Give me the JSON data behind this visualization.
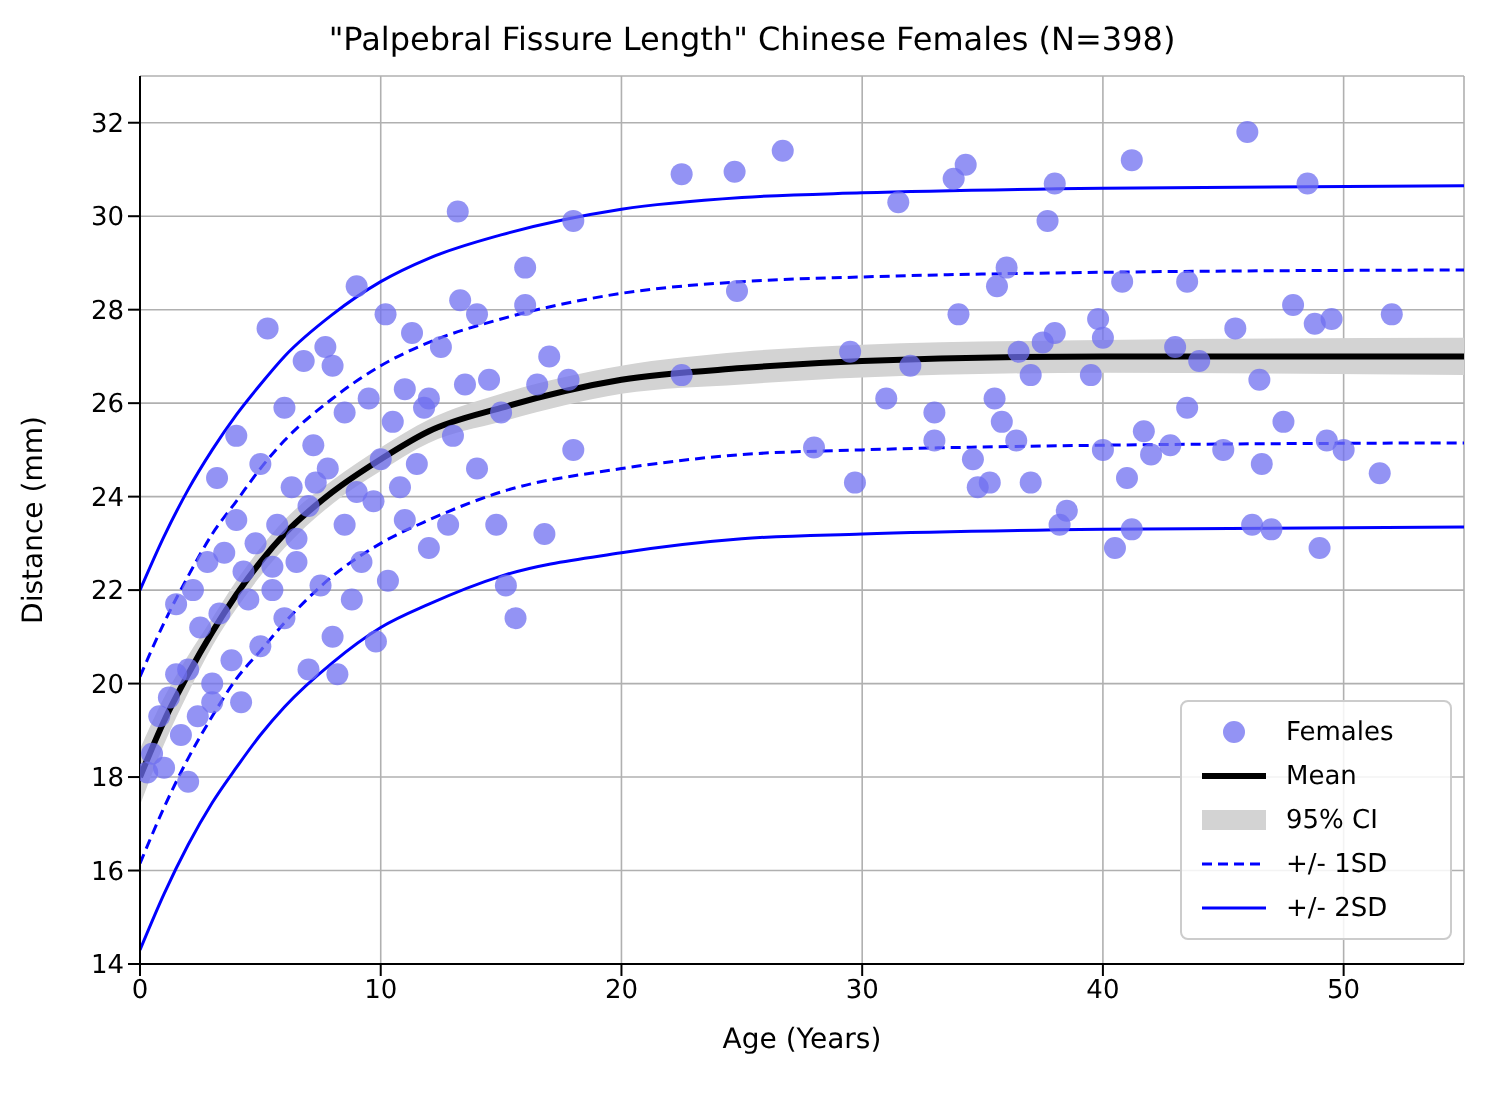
{
  "chart_data": {
    "type": "scatter",
    "title": "\"Palpebral Fissure Length\" Chinese Females (N=398)",
    "xlabel": "Age (Years)",
    "ylabel": "Distance (mm)",
    "xlim": [
      0,
      55
    ],
    "xticks": [
      0,
      10,
      20,
      30,
      40,
      50
    ],
    "ylim": [
      14,
      33
    ],
    "yticks": [
      14,
      16,
      18,
      20,
      22,
      24,
      26,
      28,
      30,
      32
    ],
    "grid": true,
    "legend": "bottom right",
    "annotations": [
      "95% CI"
    ],
    "series": [
      {
        "name": "Females",
        "type": "scatter",
        "marker": "circle",
        "color": "#6f6ff0",
        "x": [
          22.5,
          24.7,
          26.7,
          24.8,
          22.5,
          28,
          29.5,
          29.7,
          31,
          31.5,
          32,
          33,
          33,
          33.8,
          34.3,
          34,
          34.6,
          34.8,
          35.5,
          35.6,
          35.8,
          36,
          36.4,
          36.5,
          37,
          37,
          37.5,
          37.7,
          38,
          38,
          38.5,
          39.5,
          39.8,
          40,
          40.5,
          40,
          40.8,
          41.2,
          41.2,
          41.7,
          42,
          42.8,
          43,
          43.5,
          43.5,
          44,
          45,
          45.5,
          46,
          46.5,
          46.2,
          46.6,
          47,
          47.5,
          47.9,
          48.5,
          48.8,
          49,
          49.3,
          49.5,
          50,
          51.5,
          52,
          41,
          38.2,
          35.3,
          0.3,
          0.5,
          0.8,
          1,
          1.2,
          1.5,
          1.5,
          1.7,
          2,
          2,
          2.2,
          2.4,
          2.5,
          2.8,
          3,
          3.2,
          3.3,
          3.5,
          3.8,
          4,
          4,
          4.2,
          4.5,
          4.8,
          5,
          5,
          5.3,
          5.5,
          5.7,
          6,
          6,
          6.3,
          6.5,
          6.8,
          7,
          7,
          7.2,
          7.5,
          7.7,
          7.8,
          8,
          8,
          8.2,
          8.5,
          8.5,
          9,
          9,
          9.2,
          9.5,
          9.7,
          10,
          10.2,
          10.3,
          10.5,
          11,
          11,
          11.3,
          11.5,
          12,
          12,
          12.5,
          13,
          13.2,
          13.3,
          13.5,
          14,
          14,
          14.5,
          14.8,
          15,
          15.2,
          15.6,
          16,
          16,
          16.5,
          16.8,
          17,
          17.8,
          18,
          18,
          12.8,
          9.8,
          3,
          6.5,
          5.5,
          8.8,
          11.8,
          7.3,
          4.3,
          10.8
        ],
        "values": [
          30.9,
          30.95,
          31.4,
          28.4,
          26.6,
          25.05,
          27.1,
          24.3,
          26.1,
          30.3,
          26.8,
          25.8,
          25.2,
          30.8,
          31.1,
          27.9,
          24.8,
          24.2,
          26.1,
          28.5,
          25.6,
          28.9,
          25.2,
          27.1,
          26.6,
          24.3,
          27.3,
          29.9,
          30.7,
          27.5,
          23.7,
          26.6,
          27.8,
          27.4,
          22.9,
          25,
          28.6,
          31.2,
          23.3,
          25.4,
          24.9,
          25.1,
          27.2,
          28.6,
          25.9,
          26.9,
          25,
          27.6,
          31.8,
          26.5,
          23.4,
          24.7,
          23.3,
          25.6,
          28.1,
          30.7,
          27.7,
          22.9,
          25.2,
          27.8,
          25,
          24.5,
          27.9,
          24.4,
          23.4,
          24.3,
          18.1,
          18.5,
          19.3,
          18.2,
          19.7,
          20.2,
          21.7,
          18.9,
          17.9,
          20.3,
          22,
          19.3,
          21.2,
          22.6,
          20,
          24.4,
          21.5,
          22.8,
          20.5,
          23.5,
          25.3,
          19.6,
          21.8,
          23,
          20.8,
          24.7,
          27.6,
          22,
          23.4,
          21.4,
          25.9,
          24.2,
          22.6,
          26.9,
          23.8,
          20.3,
          25.1,
          22.1,
          27.2,
          24.6,
          21,
          26.8,
          20.2,
          23.4,
          25.8,
          24.1,
          28.5,
          22.6,
          26.1,
          23.9,
          24.8,
          27.9,
          22.2,
          25.6,
          26.3,
          23.5,
          27.5,
          24.7,
          26.1,
          22.9,
          27.2,
          25.3,
          30.1,
          28.2,
          26.4,
          24.6,
          27.9,
          26.5,
          23.4,
          25.8,
          22.1,
          21.4,
          28.9,
          28.1,
          26.4,
          23.2,
          27,
          26.5,
          29.9,
          25,
          23.4,
          20.9,
          19.6,
          23.1,
          22.5,
          21.8,
          25.9,
          24.3,
          22.4,
          24.2
        ]
      },
      {
        "name": "Mean",
        "type": "line",
        "color": "#000000",
        "marker": "none",
        "line_style": "solid",
        "x": [
          0,
          1,
          2,
          3,
          4,
          5,
          6,
          8,
          10,
          12,
          15,
          20,
          25,
          30,
          40,
          55
        ],
        "values": [
          18.0,
          19.2,
          20.2,
          21.1,
          21.9,
          22.6,
          23.2,
          24.1,
          24.8,
          25.4,
          25.9,
          26.5,
          26.75,
          26.9,
          27.0,
          27.0
        ],
        "lower": [
          17.4,
          18.7,
          19.8,
          20.8,
          21.6,
          22.3,
          22.9,
          23.85,
          24.55,
          25.15,
          25.6,
          26.2,
          26.4,
          26.55,
          26.65,
          26.6
        ],
        "upper": [
          18.6,
          19.7,
          20.6,
          21.4,
          22.2,
          22.9,
          23.5,
          24.35,
          25.05,
          25.65,
          26.2,
          26.8,
          27.1,
          27.25,
          27.35,
          27.4
        ]
      },
      {
        "name": "+/- 1SD",
        "type": "line",
        "color": "#0000ff",
        "marker": "none",
        "line_style": "dashed",
        "x": [
          0,
          1,
          2,
          3,
          4,
          5,
          6,
          8,
          10,
          12,
          15,
          20,
          25,
          30,
          40,
          55
        ],
        "values": [
          20.15,
          21.3,
          22.3,
          23.2,
          23.9,
          24.6,
          25.2,
          26.1,
          26.8,
          27.3,
          27.8,
          28.35,
          28.6,
          28.7,
          28.8,
          28.85
        ]
      },
      {
        "type": "line",
        "color": "#0000ff",
        "marker": "none",
        "line_style": "dashed",
        "x": [
          0,
          1,
          2,
          3,
          4,
          5,
          6,
          8,
          10,
          12,
          15,
          20,
          25,
          30,
          40,
          55
        ],
        "values": [
          16.15,
          17.35,
          18.4,
          19.3,
          20.1,
          20.7,
          21.3,
          22.3,
          23.0,
          23.5,
          24.1,
          24.6,
          24.9,
          25.0,
          25.1,
          25.15
        ]
      },
      {
        "name": "+/- 2SD",
        "type": "line",
        "color": "#0000ff",
        "marker": "none",
        "line_style": "solid",
        "x": [
          0,
          1,
          2,
          3,
          4,
          5,
          6,
          8,
          10,
          12,
          15,
          20,
          25,
          30,
          40,
          55
        ],
        "values": [
          22.0,
          23.15,
          24.15,
          25.0,
          25.75,
          26.4,
          27.0,
          27.9,
          28.6,
          29.1,
          29.6,
          30.15,
          30.4,
          30.5,
          30.6,
          30.65
        ]
      },
      {
        "type": "line",
        "color": "#0000ff",
        "marker": "none",
        "line_style": "solid",
        "x": [
          0,
          1,
          2,
          3,
          4,
          5,
          6,
          8,
          10,
          12,
          15,
          20,
          25,
          30,
          40,
          55
        ],
        "values": [
          14.3,
          15.5,
          16.55,
          17.45,
          18.2,
          18.9,
          19.5,
          20.45,
          21.2,
          21.7,
          22.3,
          22.8,
          23.1,
          23.2,
          23.3,
          23.35
        ]
      }
    ]
  }
}
